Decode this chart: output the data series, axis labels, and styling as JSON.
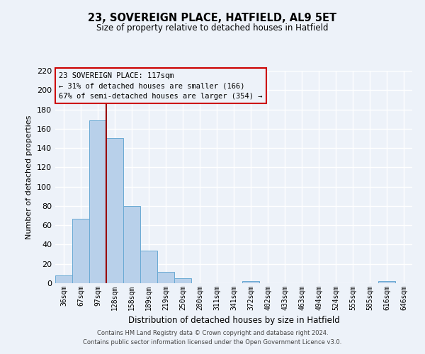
{
  "title": "23, SOVEREIGN PLACE, HATFIELD, AL9 5ET",
  "subtitle": "Size of property relative to detached houses in Hatfield",
  "xlabel": "Distribution of detached houses by size in Hatfield",
  "ylabel": "Number of detached properties",
  "bar_labels": [
    "36sqm",
    "67sqm",
    "97sqm",
    "128sqm",
    "158sqm",
    "189sqm",
    "219sqm",
    "250sqm",
    "280sqm",
    "311sqm",
    "341sqm",
    "372sqm",
    "402sqm",
    "433sqm",
    "463sqm",
    "494sqm",
    "524sqm",
    "555sqm",
    "585sqm",
    "616sqm",
    "646sqm"
  ],
  "bar_heights": [
    8,
    67,
    169,
    150,
    80,
    34,
    12,
    5,
    0,
    0,
    0,
    2,
    0,
    0,
    0,
    0,
    0,
    0,
    0,
    2,
    0
  ],
  "bar_color": "#b8d0ea",
  "bar_edge_color": "#6aaad4",
  "background_color": "#edf2f9",
  "grid_color": "#ffffff",
  "annotation_box_edge": "#cc0000",
  "vertical_line_color": "#990000",
  "annotation_text_line1": "23 SOVEREIGN PLACE: 117sqm",
  "annotation_text_line2": "← 31% of detached houses are smaller (166)",
  "annotation_text_line3": "67% of semi-detached houses are larger (354) →",
  "ylim": [
    0,
    220
  ],
  "yticks": [
    0,
    20,
    40,
    60,
    80,
    100,
    120,
    140,
    160,
    180,
    200,
    220
  ],
  "footer_line1": "Contains HM Land Registry data © Crown copyright and database right 2024.",
  "footer_line2": "Contains public sector information licensed under the Open Government Licence v3.0."
}
